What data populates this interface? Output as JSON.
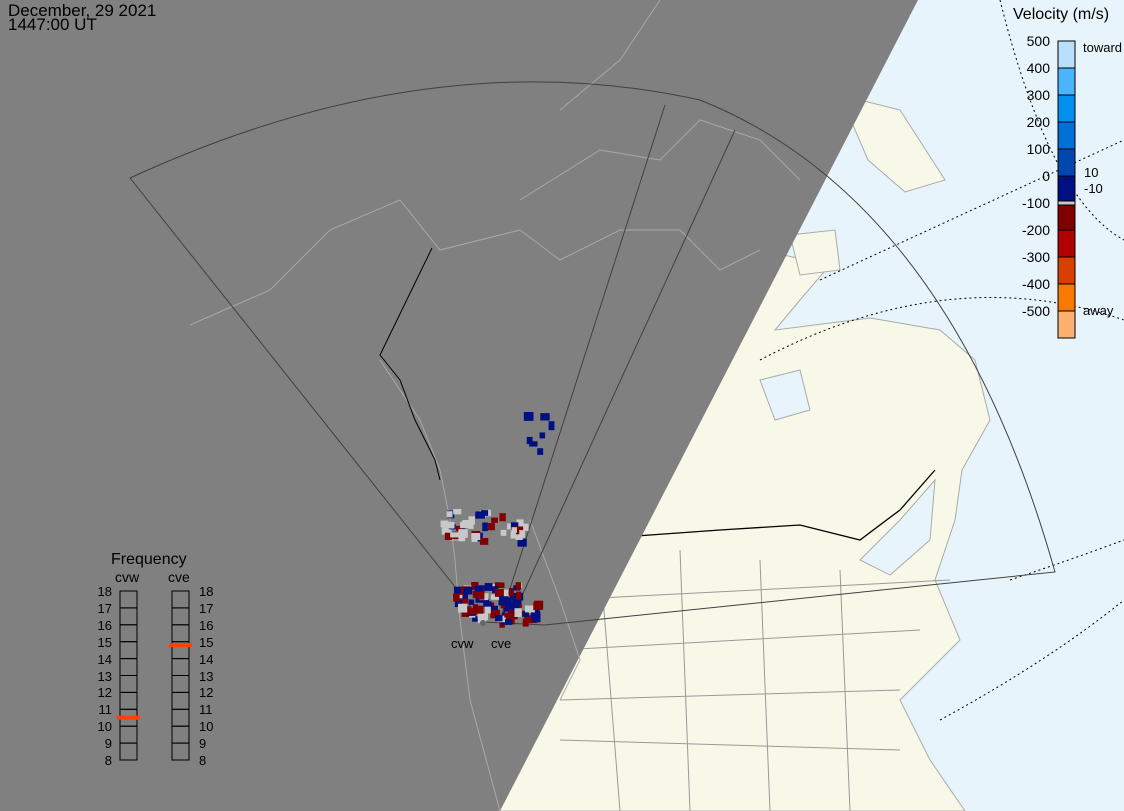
{
  "header": {
    "date": "December, 29 2021",
    "time": "1447:00 UT"
  },
  "velocity_scale": {
    "title": "Velocity (m/s)",
    "ticks": [
      "500",
      "400",
      "300",
      "200",
      "100",
      "0",
      "-100",
      "-200",
      "-300",
      "-400",
      "-500"
    ],
    "toward_label": "toward",
    "away_label": "away",
    "ground_scatter_upper": "10",
    "ground_scatter_lower": "-10",
    "colors": [
      "#b8e0fc",
      "#4cb4fc",
      "#0090f0",
      "#0070d8",
      "#0048b0",
      "#001080",
      "#c8c8c8",
      "#800000",
      "#b00000",
      "#d84000",
      "#f87800",
      "#fcb070"
    ]
  },
  "frequency_panel": {
    "title": "Frequency",
    "radars": [
      {
        "name": "cvw",
        "frequency_mhz": 10.5
      },
      {
        "name": "cve",
        "frequency_mhz": 14.8
      }
    ],
    "ticks": [
      "18",
      "17",
      "16",
      "15",
      "14",
      "13",
      "12",
      "11",
      "10",
      "9",
      "8"
    ],
    "marker_color": "#ff4000"
  },
  "map": {
    "radar_labels": [
      "cvw",
      "cve"
    ],
    "night_color": "#808080",
    "land_color": "#f8f8e8",
    "ocean_color": "#e8f4fc"
  }
}
